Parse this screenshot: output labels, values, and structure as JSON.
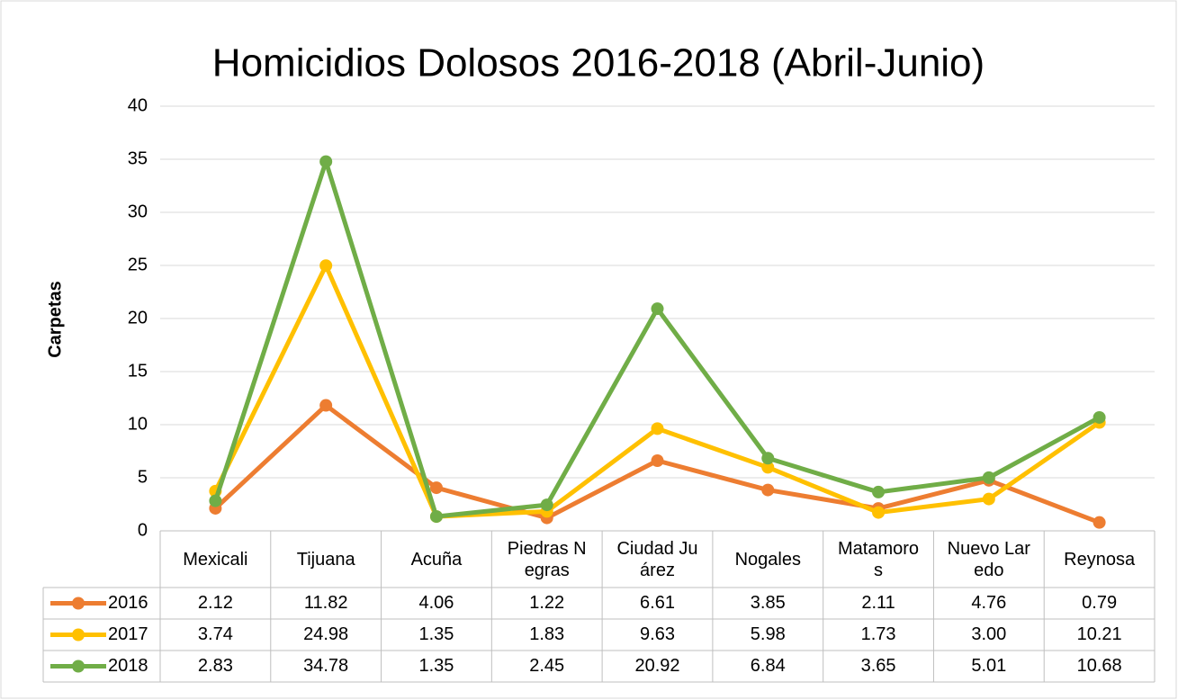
{
  "chart_data": {
    "type": "line",
    "title": "Homicidios Dolosos 2016-2018 (Abril-Junio)",
    "y_label": "Carpetas",
    "categories": [
      "Mexicali",
      "Tijuana",
      "Acuña",
      "Piedras Negras",
      "Ciudad Juárez",
      "Nogales",
      "Matamoros",
      "Nuevo Laredo",
      "Reynosa"
    ],
    "series": [
      {
        "name": "2016",
        "color": "#ED7D31",
        "values": [
          2.12,
          11.82,
          4.06,
          1.22,
          6.61,
          3.85,
          2.11,
          4.76,
          0.79
        ],
        "value_labels": [
          "2.12",
          "11.82",
          "4.06",
          "1.22",
          "6.61",
          "3.85",
          "2.11",
          "4.76",
          "0.79"
        ]
      },
      {
        "name": "2017",
        "color": "#FFC000",
        "values": [
          3.74,
          24.98,
          1.35,
          1.83,
          9.63,
          5.98,
          1.73,
          3,
          10.21
        ],
        "value_labels": [
          "3.74",
          "24.98",
          "1.35",
          "1.83",
          "9.63",
          "5.98",
          "1.73",
          "3.00",
          "10.21"
        ]
      },
      {
        "name": "2018",
        "color": "#70AD47",
        "values": [
          2.83,
          34.78,
          1.35,
          2.45,
          20.92,
          6.84,
          3.65,
          5.01,
          10.68
        ],
        "value_labels": [
          "2.83",
          "34.78",
          "1.35",
          "2.45",
          "20.92",
          "6.84",
          "3.65",
          "5.01",
          "10.68"
        ]
      }
    ],
    "ylim": [
      0,
      40
    ],
    "yticks": [
      0,
      5,
      10,
      15,
      20,
      25,
      30,
      35,
      40
    ],
    "grid": true
  }
}
